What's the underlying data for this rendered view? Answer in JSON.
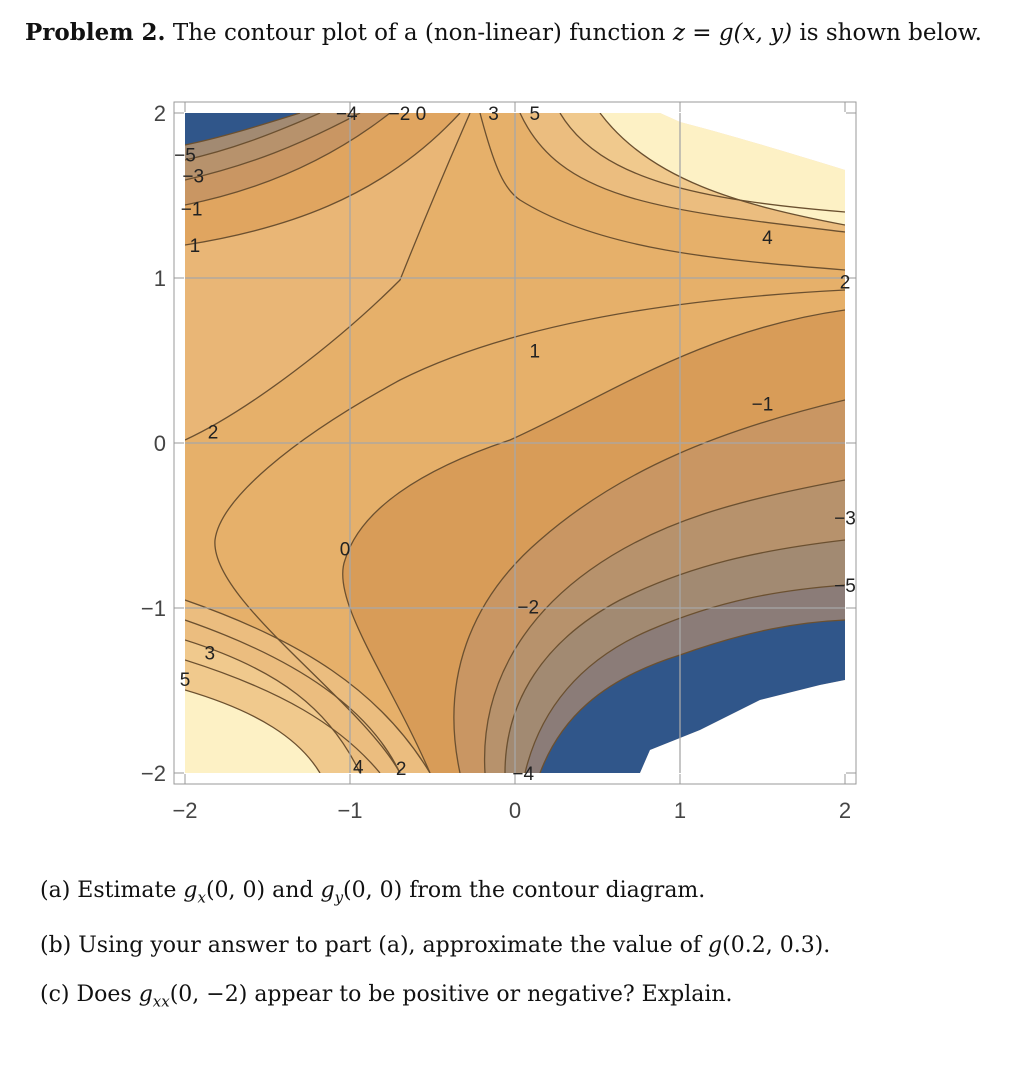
{
  "problem": {
    "label": "Problem 2.",
    "text_before": "The contour plot of a (non-linear) function",
    "equation": "z = g(x, y)",
    "text_after": "is shown below."
  },
  "chart_data": {
    "type": "contour",
    "xlim": [
      -2,
      2
    ],
    "ylim": [
      -2,
      2
    ],
    "x_ticks": [
      -2,
      -1,
      0,
      1,
      2
    ],
    "y_ticks": [
      -2,
      -1,
      0,
      1,
      2
    ],
    "x_tick_labels": [
      "−2",
      "−1",
      "0",
      "1",
      "2"
    ],
    "y_tick_labels": [
      "−2",
      "−1",
      "0",
      "1",
      "2"
    ],
    "grid": true,
    "contour_levels": [
      -5,
      -4,
      -3,
      -2,
      -1,
      0,
      1,
      2,
      3,
      4,
      5
    ],
    "contour_labels": [
      {
        "text": "−4",
        "x": -1.02,
        "y": 2.0
      },
      {
        "text": "−2",
        "x": -0.7,
        "y": 2.0
      },
      {
        "text": "0",
        "x": -0.57,
        "y": 2.0
      },
      {
        "text": "3",
        "x": -0.13,
        "y": 2.0
      },
      {
        "text": "5",
        "x": 0.12,
        "y": 2.0
      },
      {
        "text": "−5",
        "x": -2.0,
        "y": 1.75
      },
      {
        "text": "−3",
        "x": -1.95,
        "y": 1.62
      },
      {
        "text": "−1",
        "x": -1.96,
        "y": 1.42
      },
      {
        "text": "1",
        "x": -1.94,
        "y": 1.2
      },
      {
        "text": "4",
        "x": 1.53,
        "y": 1.25
      },
      {
        "text": "2",
        "x": 2.0,
        "y": 0.98
      },
      {
        "text": "1",
        "x": 0.12,
        "y": 0.56
      },
      {
        "text": "−1",
        "x": 1.5,
        "y": 0.24
      },
      {
        "text": "2",
        "x": -1.83,
        "y": 0.07
      },
      {
        "text": "−3",
        "x": 2.0,
        "y": -0.45
      },
      {
        "text": "0",
        "x": -1.03,
        "y": -0.64
      },
      {
        "text": "−5",
        "x": 2.0,
        "y": -0.86
      },
      {
        "text": "−2",
        "x": 0.08,
        "y": -0.99
      },
      {
        "text": "3",
        "x": -1.85,
        "y": -1.27
      },
      {
        "text": "5",
        "x": -2.0,
        "y": -1.43
      },
      {
        "text": "4",
        "x": -0.95,
        "y": -1.96
      },
      {
        "text": "2",
        "x": -0.69,
        "y": -1.97
      },
      {
        "text": "−4",
        "x": 0.05,
        "y": -2.0
      }
    ]
  },
  "parts": {
    "a": {
      "label": "(a)",
      "text1": "Estimate",
      "expr1": "g",
      "sub1": "x",
      "args1": "(0, 0)",
      "text2": "and",
      "expr2": "g",
      "sub2": "y",
      "args2": "(0, 0)",
      "text3": "from the contour diagram."
    },
    "b": {
      "label": "(b)",
      "text1": "Using your answer to part (a), approximate the value of",
      "expr": "g",
      "args": "(0.2, 0.3)."
    },
    "c": {
      "label": "(c)",
      "text1": "Does",
      "expr": "g",
      "sub": "xx",
      "args": "(0, −2)",
      "text2": "appear to be positive or negative? Explain."
    }
  },
  "colors": {
    "dark_blue": "#30568a",
    "pale": "#fdf1c5",
    "light_orange": "#ebbd7f",
    "orange_1": "#e6b06a",
    "orange_2": "#e0a560",
    "orange_3": "#d89c58",
    "brown_1": "#c99663",
    "brown_2": "#b7926c",
    "brown_3": "#a28a72",
    "gray_brown": "#8b7c78",
    "contour_line": "#6b5030",
    "grid": "#a7a7a7"
  }
}
